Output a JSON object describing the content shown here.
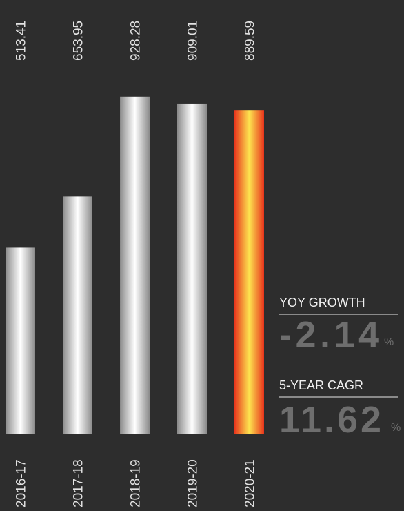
{
  "chart_data": {
    "type": "bar",
    "categories": [
      "2016-17",
      "2017-18",
      "2018-19",
      "2019-20",
      "2020-21"
    ],
    "values": [
      513.41,
      653.95,
      928.28,
      909.01,
      889.59
    ],
    "colors": [
      {
        "edge": "#8a8a8a",
        "center": "#ffffff"
      },
      {
        "edge": "#8a8a8a",
        "center": "#ffffff"
      },
      {
        "edge": "#8a8a8a",
        "center": "#ffffff"
      },
      {
        "edge": "#8a8a8a",
        "center": "#ffffff"
      },
      {
        "edge": "#e8341c",
        "center": "#fde44f"
      }
    ],
    "ylim": [
      0,
      1000
    ]
  },
  "stats": [
    {
      "label": "YOY GROWTH",
      "value": -2.14,
      "unit": "%"
    },
    {
      "label": "5-YEAR CAGR",
      "value": 11.62,
      "unit": "%"
    }
  ]
}
